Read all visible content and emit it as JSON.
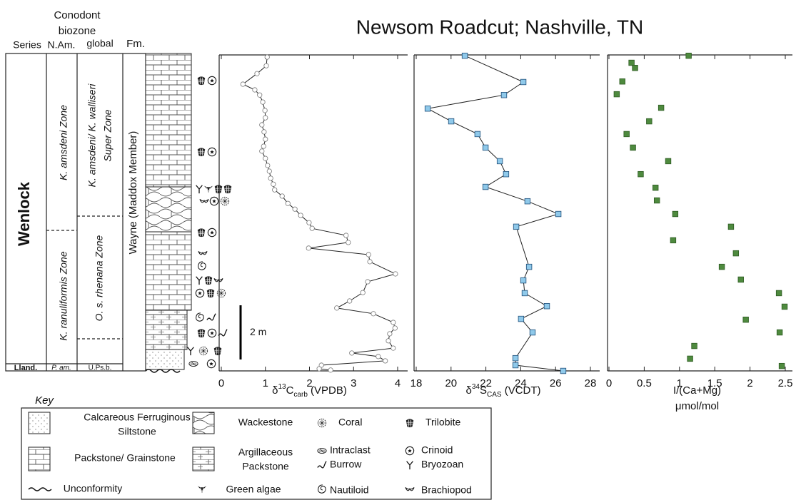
{
  "title": "Newsom Roadcut; Nashville, TN",
  "column": {
    "header": {
      "conodont": [
        "Conodont",
        "biozone"
      ],
      "series": "Series",
      "nam": "N.Am.",
      "global": "global",
      "fm": "Fm."
    },
    "series": "Wenlock",
    "series_lower": "Lland.",
    "nam_upper": "K. amsdeni Zone",
    "nam_lower": "K. ranuliformis Zone",
    "nam_base": "P. am.",
    "global_upper": [
      "K. amsdeni/ K. walliseri",
      "Super Zone"
    ],
    "global_lower": "O. s. rhenana Zone",
    "global_base": "U.Ps.b.",
    "formation": "Wayne (Maddox Member)"
  },
  "scale_bar": {
    "value": 2,
    "label": "2 m"
  },
  "chart_data": [
    {
      "type": "line",
      "xlabel": [
        {
          "text": "δ"
        },
        {
          "text": "13",
          "sup": true
        },
        {
          "text": "C"
        },
        {
          "text": "carb",
          "sub": true
        },
        {
          "text": " (VPDB)"
        }
      ],
      "xlim": [
        0,
        4
      ],
      "xticks": [
        0,
        1,
        2,
        3,
        4
      ],
      "ylim": [
        0,
        11.66
      ],
      "marker": "circle",
      "color": "#ffffff",
      "connected": true,
      "values": [
        1.04,
        1.02,
        0.81,
        0.49,
        0.76,
        0.87,
        0.94,
        0.99,
        1.0,
        0.92,
        0.97,
        1.0,
        0.96,
        0.92,
        1.0,
        1.05,
        1.09,
        1.12,
        1.18,
        1.21,
        1.38,
        1.51,
        1.67,
        1.8,
        1.99,
        2.06,
        2.83,
        2.88,
        1.98,
        3.34,
        3.37,
        3.95,
        3.32,
        3.21,
        2.91,
        2.62,
        3.45,
        3.9,
        3.94,
        3.82,
        3.79,
        3.9,
        2.96,
        3.56,
        3.72,
        2.27,
        2.22,
        2.48
      ],
      "heights": [
        11.58,
        11.26,
        10.97,
        10.58,
        10.37,
        10.18,
        9.92,
        9.61,
        9.34,
        9.08,
        8.82,
        8.55,
        8.29,
        8.11,
        7.84,
        7.58,
        7.37,
        7.11,
        6.89,
        6.68,
        6.45,
        6.18,
        5.97,
        5.74,
        5.47,
        5.26,
        5.0,
        4.74,
        4.53,
        4.29,
        4.03,
        3.58,
        3.29,
        2.89,
        2.58,
        2.32,
        2.11,
        1.79,
        1.58,
        1.37,
        1.11,
        0.84,
        0.66,
        0.53,
        0.37,
        0.21,
        0.08,
        0.03
      ]
    },
    {
      "type": "line",
      "xlabel": [
        {
          "text": "δ"
        },
        {
          "text": "34",
          "sup": true
        },
        {
          "text": "S"
        },
        {
          "text": "CAS",
          "sub": true
        },
        {
          "text": " (VCDT)"
        }
      ],
      "xlim": [
        18,
        28
      ],
      "xticks": [
        18,
        20,
        22,
        24,
        26,
        28
      ],
      "ylim": [
        0,
        11.66
      ],
      "marker": "square",
      "color": "#8fc9ea",
      "connected": true,
      "values": [
        20.79,
        24.15,
        23.04,
        18.66,
        20.01,
        21.52,
        21.98,
        22.8,
        23.16,
        21.98,
        24.39,
        26.16,
        23.74,
        24.48,
        24.15,
        24.23,
        25.5,
        24.02,
        24.68,
        23.7,
        23.7,
        26.44
      ],
      "heights": [
        11.63,
        10.66,
        10.18,
        9.68,
        9.21,
        8.74,
        8.24,
        7.74,
        7.26,
        6.79,
        6.26,
        5.79,
        5.32,
        3.84,
        3.34,
        2.87,
        2.39,
        1.92,
        1.42,
        0.47,
        0.21,
        0.0
      ]
    },
    {
      "type": "scatter",
      "xlabel": [
        {
          "text": "I/(Ca+Mg)"
        }
      ],
      "xlabel2": "μmol/mol",
      "xlim": [
        0,
        2.5
      ],
      "xticks": [
        0,
        0.5,
        1,
        1.5,
        2,
        2.5
      ],
      "ylim": [
        0,
        11.66
      ],
      "marker": "square",
      "color": "#4e8a3e",
      "connected": false,
      "values": [
        1.13,
        0.32,
        0.37,
        0.19,
        0.11,
        0.74,
        0.57,
        0.25,
        0.34,
        0.84,
        0.45,
        0.66,
        0.68,
        0.94,
        1.73,
        0.91,
        1.8,
        1.6,
        1.87,
        2.41,
        2.49,
        1.94,
        2.42,
        1.21,
        1.15,
        2.45
      ],
      "heights": [
        11.63,
        11.37,
        11.18,
        10.68,
        10.21,
        9.71,
        9.21,
        8.74,
        8.24,
        7.74,
        7.26,
        6.76,
        6.29,
        5.79,
        5.32,
        4.82,
        4.34,
        3.84,
        3.37,
        2.87,
        2.37,
        1.89,
        1.42,
        0.92,
        0.45,
        0.18
      ]
    }
  ],
  "key": {
    "title": "Key",
    "siltstone": [
      "Calcareous Ferruginous",
      "Siltstone"
    ],
    "packstone": "Packstone/ Grainstone",
    "unconformity": "Unconformity",
    "wackestone": "Wackestone",
    "argillaceous": [
      "Argillaceous",
      "Packstone"
    ],
    "algae": "Green algae",
    "coral": "Coral",
    "intraclast": "Intraclast",
    "burrow": "Burrow",
    "nautiloid": "Nautiloid",
    "trilobite": "Trilobite",
    "crinoid": "Crinoid",
    "bryozoan": "Bryozoan",
    "brachiopod": "Brachiopod"
  }
}
